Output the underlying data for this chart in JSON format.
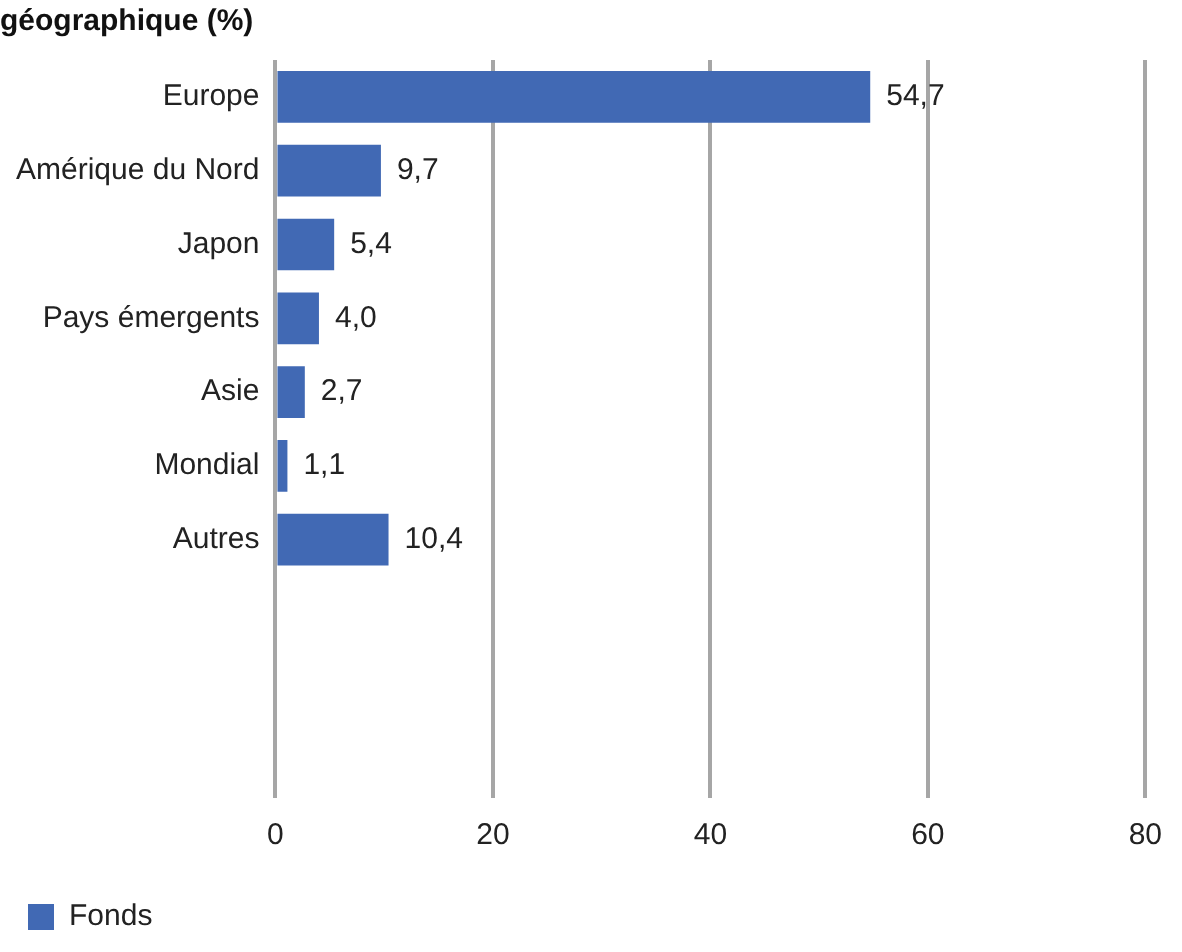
{
  "chart_data": {
    "type": "bar",
    "orientation": "horizontal",
    "title": "géographique (%)",
    "categories": [
      "Europe",
      "Amérique du Nord",
      "Japon",
      "Pays émergents",
      "Asie",
      "Mondial",
      "Autres",
      null,
      null,
      null
    ],
    "series": [
      {
        "name": "Fonds",
        "color": "#4169b4",
        "values": [
          54.7,
          9.7,
          5.4,
          4.0,
          2.7,
          1.1,
          10.4,
          null,
          null,
          null
        ],
        "value_labels": [
          "54,7",
          "9,7",
          "5,4",
          "4,0",
          "2,7",
          "1,1",
          "10,4",
          null,
          null,
          null
        ]
      }
    ],
    "xlim": [
      0,
      80
    ],
    "xticks": [
      0,
      20,
      40,
      60,
      80
    ],
    "grid": "x",
    "legend": "bottom left"
  }
}
